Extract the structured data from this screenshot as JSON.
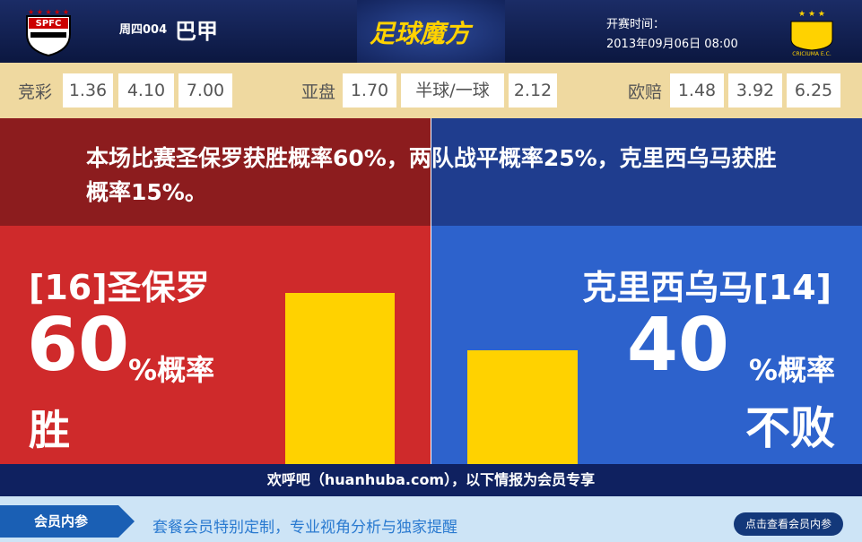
{
  "header": {
    "home_logo": "SPFC",
    "match_no": "周四004",
    "league": "巴甲",
    "brand": "足球魔方",
    "kickoff_label": "开赛时间：",
    "kickoff_time": "2013年09月06日 08:00",
    "away_logo": "CRICIUMA E.C."
  },
  "odds": [
    {
      "label": "竞彩",
      "values": [
        "1.36",
        "4.10",
        "7.00"
      ]
    },
    {
      "label": "亚盘",
      "values": [
        "1.70",
        "半球/一球",
        "2.12"
      ]
    },
    {
      "label": "欧赔",
      "values": [
        "1.48",
        "3.92",
        "6.25"
      ]
    }
  ],
  "summary": "本场比赛圣保罗获胜概率60%，两队战平概率25%，克里西乌马获胜概率15%。",
  "home": {
    "name": "[16]圣保罗",
    "probability": 60,
    "unit": "%概率",
    "outcome": "胜"
  },
  "away": {
    "name": "克里西乌马[14]",
    "probability": 40,
    "unit": "%概率",
    "outcome": "不败"
  },
  "footer_note": "欢呼吧（huanhuba.com），以下情报为会员专享",
  "member": {
    "label": "会员内参",
    "text": "套餐会员特别定制，专业视角分析与独家提醒",
    "button": "点击查看会员内参"
  }
}
